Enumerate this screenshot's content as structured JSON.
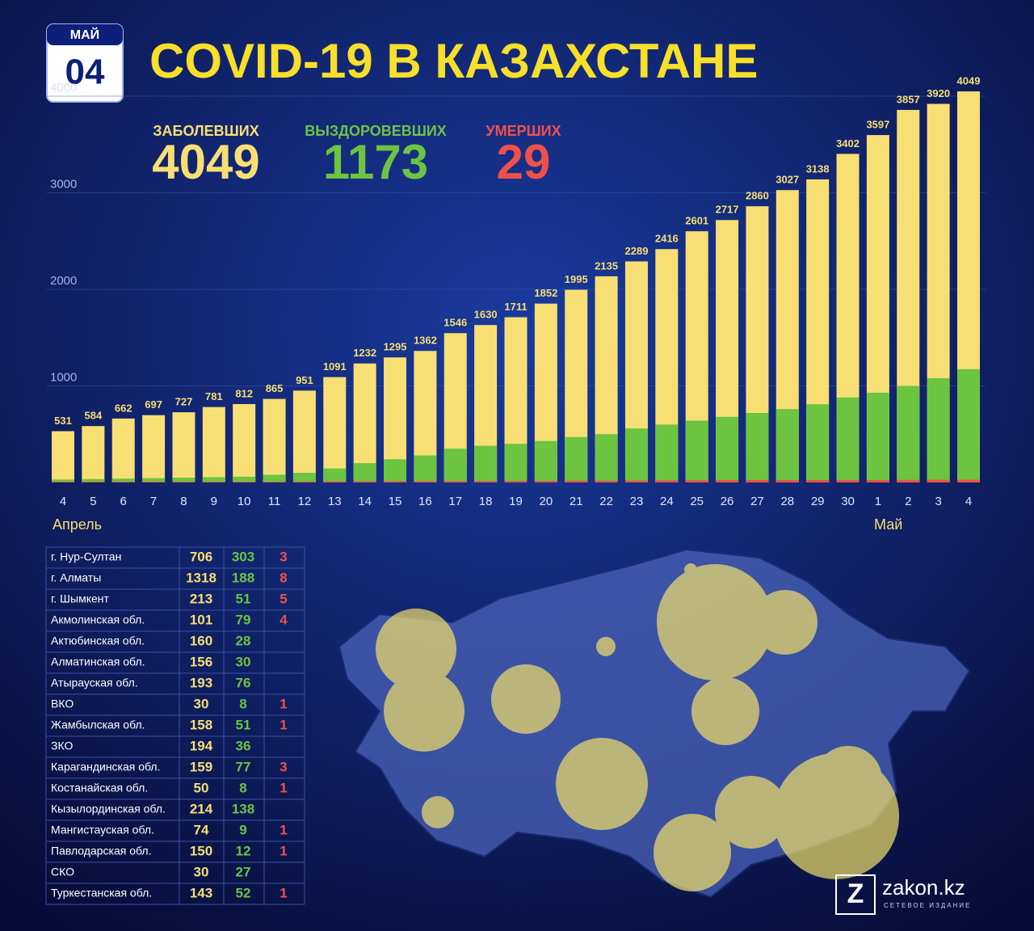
{
  "header": {
    "month": "МАЙ",
    "day": "04",
    "title": "COVID-19 В КАЗАХСТАНЕ"
  },
  "chart_data": {
    "type": "bar",
    "categories": [
      "4",
      "5",
      "6",
      "7",
      "8",
      "9",
      "10",
      "11",
      "12",
      "13",
      "14",
      "15",
      "16",
      "17",
      "18",
      "19",
      "20",
      "21",
      "22",
      "23",
      "24",
      "25",
      "26",
      "27",
      "28",
      "29",
      "30",
      "1",
      "2",
      "3",
      "4"
    ],
    "groups": [
      "Апрель",
      "Май"
    ],
    "ylim": [
      0,
      4100
    ],
    "yticks": [
      1000,
      2000,
      3000,
      4000
    ],
    "grid": true,
    "series": [
      {
        "name": "ЗАБОЛЕВШИХ",
        "total": 4049,
        "color": "#f7df74",
        "values": [
          531,
          584,
          662,
          697,
          727,
          781,
          812,
          865,
          951,
          1091,
          1232,
          1295,
          1362,
          1546,
          1630,
          1711,
          1852,
          1995,
          2135,
          2289,
          2416,
          2601,
          2717,
          2860,
          3027,
          3138,
          3402,
          3597,
          3857,
          3920,
          4049
        ]
      },
      {
        "name": "ВЫЗДОРОВЕВШИХ",
        "total": 1173,
        "color": "#6cc441",
        "values": [
          30,
          35,
          40,
          45,
          50,
          55,
          60,
          80,
          100,
          145,
          200,
          240,
          280,
          350,
          380,
          400,
          430,
          470,
          500,
          560,
          600,
          640,
          680,
          720,
          760,
          810,
          880,
          930,
          1000,
          1080,
          1173
        ]
      },
      {
        "name": "УМЕРШИХ",
        "total": 29,
        "color": "#f0504a",
        "values": [
          5,
          5,
          6,
          6,
          7,
          7,
          7,
          8,
          10,
          12,
          13,
          14,
          14,
          15,
          15,
          16,
          17,
          19,
          19,
          20,
          22,
          23,
          24,
          25,
          25,
          25,
          25,
          26,
          27,
          28,
          29
        ]
      }
    ]
  },
  "table": {
    "rows": [
      {
        "region": "г. Нур-Султан",
        "cases": 706,
        "recovered": 303,
        "deaths": 3
      },
      {
        "region": "г. Алматы",
        "cases": 1318,
        "recovered": 188,
        "deaths": 8
      },
      {
        "region": "г. Шымкент",
        "cases": 213,
        "recovered": 51,
        "deaths": 5
      },
      {
        "region": "Акмолинская обл.",
        "cases": 101,
        "recovered": 79,
        "deaths": 4
      },
      {
        "region": "Актюбинская обл.",
        "cases": 160,
        "recovered": 28
      },
      {
        "region": "Алматинская обл.",
        "cases": 156,
        "recovered": 30
      },
      {
        "region": "Атырауская обл.",
        "cases": 193,
        "recovered": 76
      },
      {
        "region": "ВКО",
        "cases": 30,
        "recovered": 8,
        "deaths": 1
      },
      {
        "region": "Жамбылская обл.",
        "cases": 158,
        "recovered": 51,
        "deaths": 1
      },
      {
        "region": "ЗКО",
        "cases": 194,
        "recovered": 36
      },
      {
        "region": "Карагандинская обл.",
        "cases": 159,
        "recovered": 77,
        "deaths": 3
      },
      {
        "region": "Костанайская обл.",
        "cases": 50,
        "recovered": 8,
        "deaths": 1
      },
      {
        "region": "Кызылординская обл.",
        "cases": 214,
        "recovered": 138
      },
      {
        "region": "Мангистауская обл.",
        "cases": 74,
        "recovered": 9,
        "deaths": 1
      },
      {
        "region": "Павлодарская обл.",
        "cases": 150,
        "recovered": 12,
        "deaths": 1
      },
      {
        "region": "СКО",
        "cases": 30,
        "recovered": 27
      },
      {
        "region": "Туркестанская обл.",
        "cases": 143,
        "recovered": 52,
        "deaths": 1
      }
    ]
  },
  "logo": {
    "name": "zakon.kz",
    "tagline": "СЕТЕВОЕ ИЗДАНИЕ"
  }
}
